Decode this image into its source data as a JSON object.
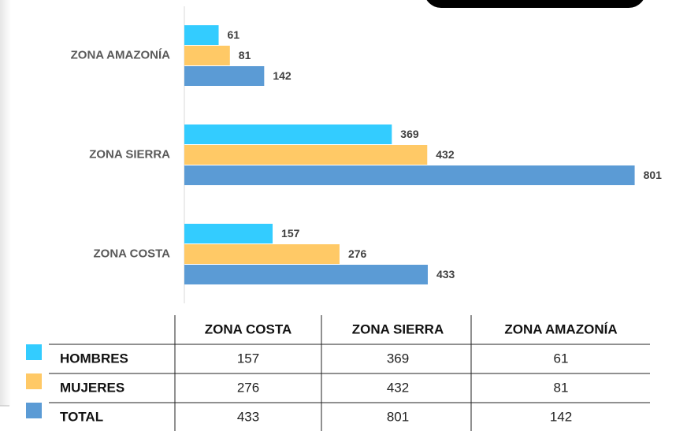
{
  "chart_data": {
    "type": "hbar",
    "categories": [
      "ZONA COSTA",
      "ZONA SIERRA",
      "ZONA AMAZONÍA"
    ],
    "series": [
      {
        "name": "HOMBRES",
        "color": "#33ccff",
        "values": [
          157,
          369,
          61
        ]
      },
      {
        "name": "MUJERES",
        "color": "#ffc966",
        "values": [
          276,
          432,
          81
        ]
      },
      {
        "name": "TOTAL",
        "color": "#5b9bd5",
        "values": [
          433,
          801,
          142
        ]
      }
    ],
    "xlim": [
      0,
      810
    ]
  }
}
